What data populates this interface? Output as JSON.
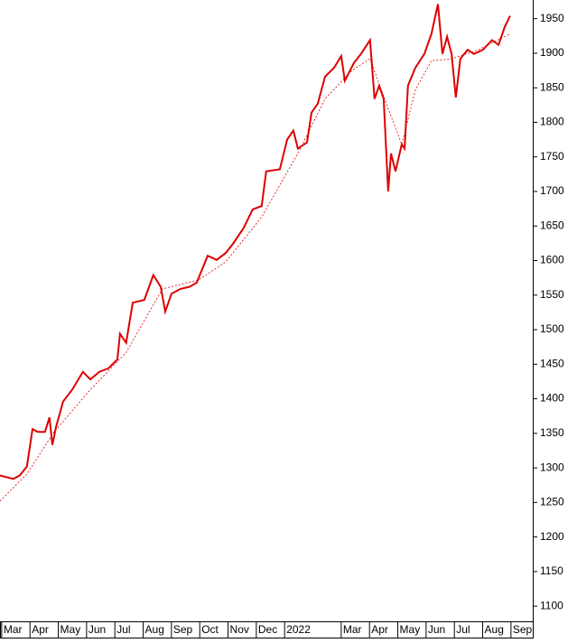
{
  "chart_data": {
    "type": "line",
    "xlim": [
      -0.06,
      18.77
    ],
    "ylim": [
      1078,
      1977
    ],
    "xticks": [
      {
        "value": 0,
        "label": "Mar"
      },
      {
        "value": 1,
        "label": "Apr"
      },
      {
        "value": 2,
        "label": "May"
      },
      {
        "value": 3,
        "label": "Jun"
      },
      {
        "value": 4,
        "label": "Jul"
      },
      {
        "value": 5,
        "label": "Aug"
      },
      {
        "value": 6,
        "label": "Sep"
      },
      {
        "value": 7,
        "label": "Oct"
      },
      {
        "value": 8,
        "label": "Nov"
      },
      {
        "value": 9,
        "label": "Dec"
      },
      {
        "value": 10,
        "label": "2022"
      },
      {
        "value": 12,
        "label": "Mar"
      },
      {
        "value": 13,
        "label": "Apr"
      },
      {
        "value": 14,
        "label": "May"
      },
      {
        "value": 15,
        "label": "Jun"
      },
      {
        "value": 16,
        "label": "Jul"
      },
      {
        "value": 17,
        "label": "Aug"
      },
      {
        "value": 18,
        "label": "Sep"
      }
    ],
    "yticks": [
      1100,
      1150,
      1200,
      1250,
      1300,
      1350,
      1400,
      1450,
      1500,
      1550,
      1600,
      1650,
      1700,
      1750,
      1800,
      1850,
      1900,
      1950
    ],
    "series": [
      {
        "color": "#dd0000",
        "dashed": false,
        "x": [
          -0.06,
          0.41,
          0.64,
          0.89,
          1.09,
          1.28,
          1.53,
          1.69,
          1.79,
          1.92,
          2.17,
          2.49,
          2.87,
          3.13,
          3.45,
          3.77,
          4.09,
          4.18,
          4.4,
          4.63,
          5.04,
          5.36,
          5.62,
          5.78,
          6.0,
          6.32,
          6.64,
          6.89,
          7.28,
          7.6,
          7.92,
          8.17,
          8.55,
          8.87,
          9.19,
          9.35,
          9.83,
          10.09,
          10.31,
          10.47,
          10.79,
          10.95,
          11.17,
          11.43,
          11.75,
          12.0,
          12.13,
          12.45,
          12.7,
          13.02,
          13.18,
          13.34,
          13.5,
          13.66,
          13.76,
          13.92,
          14.14,
          14.24,
          14.36,
          14.62,
          14.94,
          15.19,
          15.42,
          15.58,
          15.74,
          15.9,
          16.05,
          16.21,
          16.47,
          16.69,
          17.01,
          17.33,
          17.56,
          17.78,
          17.97
        ],
        "values": [
          1289,
          1284,
          1289,
          1302,
          1356,
          1352,
          1352,
          1373,
          1333,
          1359,
          1396,
          1413,
          1439,
          1428,
          1439,
          1444,
          1457,
          1494,
          1481,
          1539,
          1543,
          1579,
          1562,
          1526,
          1552,
          1559,
          1562,
          1568,
          1607,
          1601,
          1611,
          1624,
          1647,
          1674,
          1679,
          1729,
          1732,
          1775,
          1788,
          1762,
          1771,
          1814,
          1827,
          1866,
          1879,
          1896,
          1860,
          1886,
          1899,
          1919,
          1834,
          1853,
          1834,
          1700,
          1755,
          1729,
          1768,
          1762,
          1853,
          1879,
          1899,
          1928,
          1971,
          1899,
          1924,
          1899,
          1836,
          1892,
          1905,
          1899,
          1905,
          1919,
          1912,
          1938,
          1954
        ]
      },
      {
        "color": "#dd0000",
        "dashed": true,
        "x": [
          -0.06,
          0.89,
          1.85,
          3.13,
          4.4,
          5.68,
          6.96,
          7.92,
          9.19,
          10.47,
          11.43,
          12.38,
          13.02,
          13.66,
          14.14,
          14.62,
          15.19,
          15.9,
          16.85,
          17.97
        ],
        "values": [
          1252,
          1291,
          1352,
          1413,
          1467,
          1559,
          1572,
          1598,
          1663,
          1755,
          1834,
          1875,
          1892,
          1820,
          1768,
          1847,
          1889,
          1892,
          1905,
          1928
        ]
      }
    ]
  }
}
